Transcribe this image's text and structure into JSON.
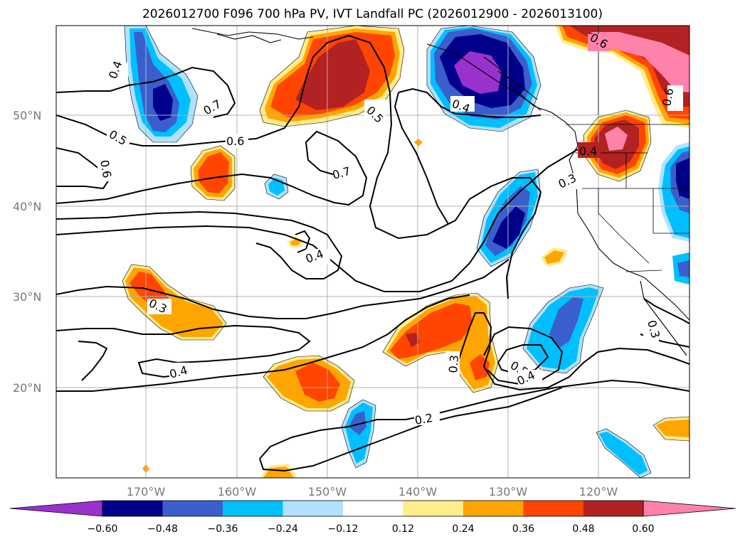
{
  "title": "2026012700 F096 700 hPa PV, IVT Landfall PC (2026012900 - 2026013100)",
  "lat_labels": [
    "50°N",
    "40°N",
    "30°N",
    "20°N"
  ],
  "lon_labels": [
    "170°W",
    "160°W",
    "150°W",
    "140°W",
    "130°W",
    "120°W"
  ],
  "colorbar": {
    "ticks": [
      "−0.60",
      "−0.48",
      "−0.36",
      "−0.24",
      "−0.12",
      "0.12",
      "0.24",
      "0.36",
      "0.48",
      "0.60"
    ],
    "colors": {
      "lt_neg060": "#9932cc",
      "neg060_neg048": "#00008b",
      "neg048_neg036": "#3a5fcd",
      "neg036_neg024": "#00bfff",
      "neg024_neg012": "#b0e2ff",
      "neg012_012": "#ffffff",
      "p012_p024": "#ffec8b",
      "p024_p036": "#ffa500",
      "p036_p048": "#ff4500",
      "p048_p060": "#b22222",
      "gt_060": "#ff82ab"
    }
  },
  "contour_labels": [
    "0.4",
    "0.7",
    "0.5",
    "0.6",
    "0.6",
    "0.5",
    "0.7",
    "0.4",
    "0.4",
    "0.3",
    "0.3",
    "0.4",
    "0.3",
    "0.5",
    "0.4",
    "0.2",
    "0.3",
    "0.6",
    "0.6",
    "0.4"
  ]
}
